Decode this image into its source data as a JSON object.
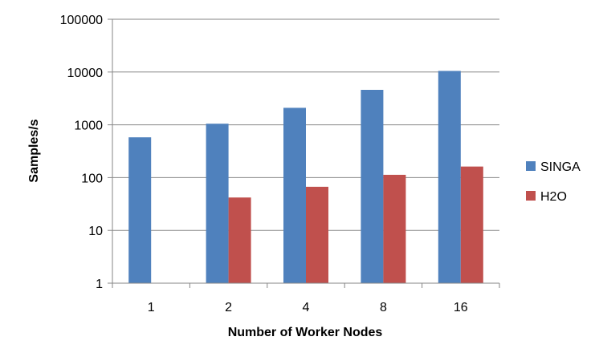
{
  "chart_data": {
    "type": "bar",
    "title": "",
    "xlabel": "Number of Worker Nodes",
    "ylabel": "Samples/s",
    "yscale": "log",
    "ylim": [
      1,
      100000
    ],
    "yticks": [
      "1",
      "10",
      "100",
      "1000",
      "10000",
      "100000"
    ],
    "categories": [
      "1",
      "2",
      "4",
      "8",
      "16"
    ],
    "series": [
      {
        "name": "SINGA",
        "color": "#4F81BD",
        "values": [
          580,
          1050,
          2100,
          4600,
          10500
        ]
      },
      {
        "name": "H2O",
        "color": "#C0504D",
        "values": [
          null,
          42,
          67,
          113,
          162
        ]
      }
    ],
    "grid": "horizontal",
    "legend_position": "right"
  }
}
